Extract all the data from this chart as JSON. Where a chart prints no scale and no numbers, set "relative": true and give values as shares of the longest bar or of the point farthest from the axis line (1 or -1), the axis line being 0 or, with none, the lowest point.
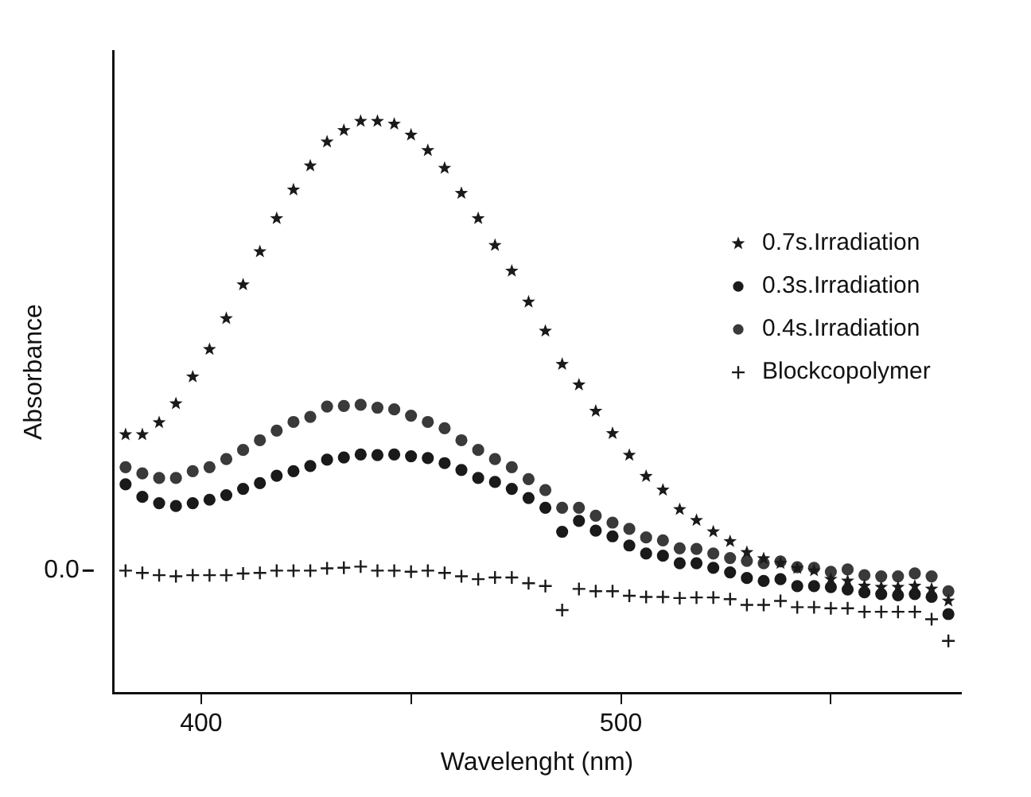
{
  "chart_data": {
    "type": "scatter",
    "xlabel": "Wavelenght (nm)",
    "ylabel": "Absorbance",
    "relative": true,
    "x": [
      382,
      386,
      390,
      394,
      398,
      402,
      406,
      410,
      414,
      418,
      422,
      426,
      430,
      434,
      438,
      442,
      446,
      450,
      454,
      458,
      462,
      466,
      470,
      474,
      478,
      482,
      486,
      490,
      494,
      498,
      502,
      506,
      510,
      514,
      518,
      522,
      526,
      530,
      534,
      538,
      542,
      546,
      550,
      554,
      558,
      562,
      566,
      570,
      574,
      578
    ],
    "xlim": [
      379,
      581
    ],
    "xticks": [
      400,
      {
        "value": 450,
        "label": null
      },
      500,
      {
        "value": 550,
        "label": null
      }
    ],
    "annotations": [
      {
        "text": "0.0",
        "x": 382,
        "y": 0.214
      }
    ],
    "grid": false,
    "legend": "right",
    "series": [
      {
        "name": "0.7s.Irradiation",
        "color": "#1a1a1a",
        "marker": "star",
        "values": [
          0.452,
          0.452,
          0.473,
          0.506,
          0.553,
          0.601,
          0.655,
          0.714,
          0.772,
          0.83,
          0.88,
          0.922,
          0.964,
          0.984,
          1,
          1,
          0.995,
          0.976,
          0.949,
          0.918,
          0.874,
          0.83,
          0.783,
          0.738,
          0.684,
          0.633,
          0.575,
          0.539,
          0.493,
          0.454,
          0.416,
          0.379,
          0.355,
          0.321,
          0.302,
          0.282,
          0.265,
          0.246,
          0.235,
          0.227,
          0.218,
          0.214,
          0.199,
          0.196,
          0.187,
          0.185,
          0.185,
          0.187,
          0.182,
          0.161
        ]
      },
      {
        "name": "0.3s.Irradiation",
        "color": "#1a1a1a",
        "marker": "circle",
        "values": [
          0.365,
          0.343,
          0.332,
          0.327,
          0.332,
          0.338,
          0.346,
          0.357,
          0.367,
          0.38,
          0.388,
          0.397,
          0.408,
          0.412,
          0.417,
          0.416,
          0.417,
          0.414,
          0.411,
          0.402,
          0.39,
          0.376,
          0.369,
          0.357,
          0.341,
          0.324,
          0.282,
          0.301,
          0.284,
          0.274,
          0.258,
          0.244,
          0.24,
          0.227,
          0.227,
          0.219,
          0.211,
          0.201,
          0.196,
          0.199,
          0.187,
          0.187,
          0.185,
          0.181,
          0.176,
          0.173,
          0.171,
          0.173,
          0.168,
          0.138
        ]
      },
      {
        "name": "0.4s.Irradiation",
        "color": "#3a3a3a",
        "marker": "circle",
        "values": [
          0.395,
          0.384,
          0.376,
          0.376,
          0.388,
          0.395,
          0.409,
          0.425,
          0.442,
          0.459,
          0.474,
          0.483,
          0.501,
          0.502,
          0.504,
          0.499,
          0.496,
          0.485,
          0.474,
          0.463,
          0.442,
          0.425,
          0.409,
          0.395,
          0.374,
          0.355,
          0.324,
          0.324,
          0.31,
          0.298,
          0.287,
          0.272,
          0.267,
          0.253,
          0.252,
          0.244,
          0.236,
          0.231,
          0.227,
          0.23,
          0.22,
          0.219,
          0.212,
          0.216,
          0.206,
          0.204,
          0.204,
          0.209,
          0.204,
          0.178
        ]
      },
      {
        "name": "Blockcopolymer",
        "color": "#1a1a1a",
        "marker": "cross",
        "values": [
          0.214,
          0.21,
          0.206,
          0.204,
          0.206,
          0.206,
          0.206,
          0.209,
          0.21,
          0.214,
          0.214,
          0.214,
          0.218,
          0.219,
          0.221,
          0.214,
          0.214,
          0.212,
          0.214,
          0.21,
          0.204,
          0.199,
          0.202,
          0.202,
          0.192,
          0.187,
          0.145,
          0.182,
          0.178,
          0.178,
          0.17,
          0.168,
          0.168,
          0.166,
          0.167,
          0.167,
          0.164,
          0.154,
          0.154,
          0.161,
          0.15,
          0.15,
          0.148,
          0.148,
          0.142,
          0.142,
          0.142,
          0.142,
          0.129,
          0.091
        ]
      }
    ]
  }
}
